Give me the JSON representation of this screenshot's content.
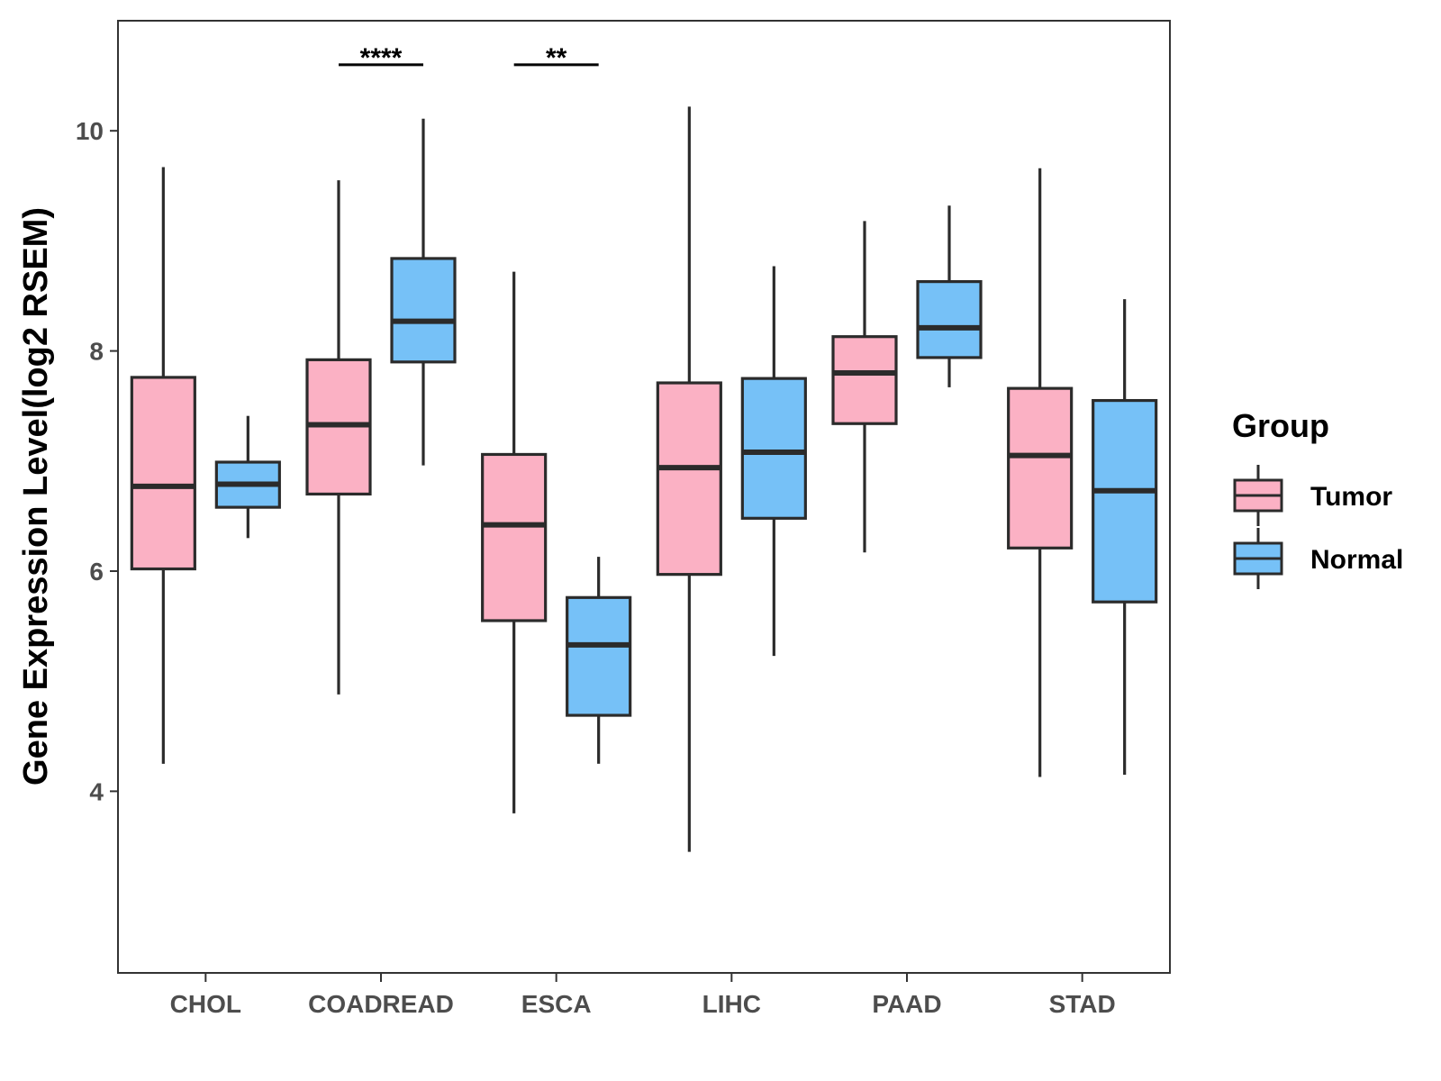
{
  "chart_data": {
    "type": "boxplot",
    "title": "",
    "xlabel": "",
    "ylabel": "Gene Expression Level(log2 RSEM)",
    "ylim": [
      2.35,
      11.0
    ],
    "yticks": [
      4,
      6,
      8,
      10
    ],
    "categories": [
      "CHOL",
      "COADREAD",
      "ESCA",
      "LIHC",
      "PAAD",
      "STAD"
    ],
    "legend": {
      "title": "Group",
      "position": "right",
      "entries": [
        {
          "name": "Tumor",
          "color": "#fbb1c4"
        },
        {
          "name": "Normal",
          "color": "#76c1f7"
        }
      ]
    },
    "series": [
      {
        "name": "Tumor",
        "color": "#fbb1c4",
        "boxes": [
          {
            "category": "CHOL",
            "min": 4.25,
            "q1": 6.02,
            "median": 6.77,
            "q3": 7.76,
            "max": 9.67
          },
          {
            "category": "COADREAD",
            "min": 4.88,
            "q1": 6.7,
            "median": 7.33,
            "q3": 7.92,
            "max": 9.55
          },
          {
            "category": "ESCA",
            "min": 3.8,
            "q1": 5.55,
            "median": 6.42,
            "q3": 7.06,
            "max": 8.72
          },
          {
            "category": "LIHC",
            "min": 3.45,
            "q1": 5.97,
            "median": 6.94,
            "q3": 7.71,
            "max": 10.22
          },
          {
            "category": "PAAD",
            "min": 6.17,
            "q1": 7.34,
            "median": 7.8,
            "q3": 8.13,
            "max": 9.18
          },
          {
            "category": "STAD",
            "min": 4.13,
            "q1": 6.21,
            "median": 7.05,
            "q3": 7.66,
            "max": 9.66
          }
        ]
      },
      {
        "name": "Normal",
        "color": "#76c1f7",
        "boxes": [
          {
            "category": "CHOL",
            "min": 6.3,
            "q1": 6.58,
            "median": 6.79,
            "q3": 6.99,
            "max": 7.41
          },
          {
            "category": "COADREAD",
            "min": 6.96,
            "q1": 7.9,
            "median": 8.27,
            "q3": 8.84,
            "max": 10.11
          },
          {
            "category": "ESCA",
            "min": 4.25,
            "q1": 4.69,
            "median": 5.33,
            "q3": 5.76,
            "max": 6.13
          },
          {
            "category": "LIHC",
            "min": 5.23,
            "q1": 6.48,
            "median": 7.08,
            "q3": 7.75,
            "max": 8.77
          },
          {
            "category": "PAAD",
            "min": 7.67,
            "q1": 7.94,
            "median": 8.21,
            "q3": 8.63,
            "max": 9.32
          },
          {
            "category": "STAD",
            "min": 4.15,
            "q1": 5.72,
            "median": 6.73,
            "q3": 7.55,
            "max": 8.47
          }
        ]
      }
    ],
    "significance": [
      {
        "category": "COADREAD",
        "label": "****",
        "y": 10.6
      },
      {
        "category": "ESCA",
        "label": "**",
        "y": 10.6
      }
    ]
  }
}
